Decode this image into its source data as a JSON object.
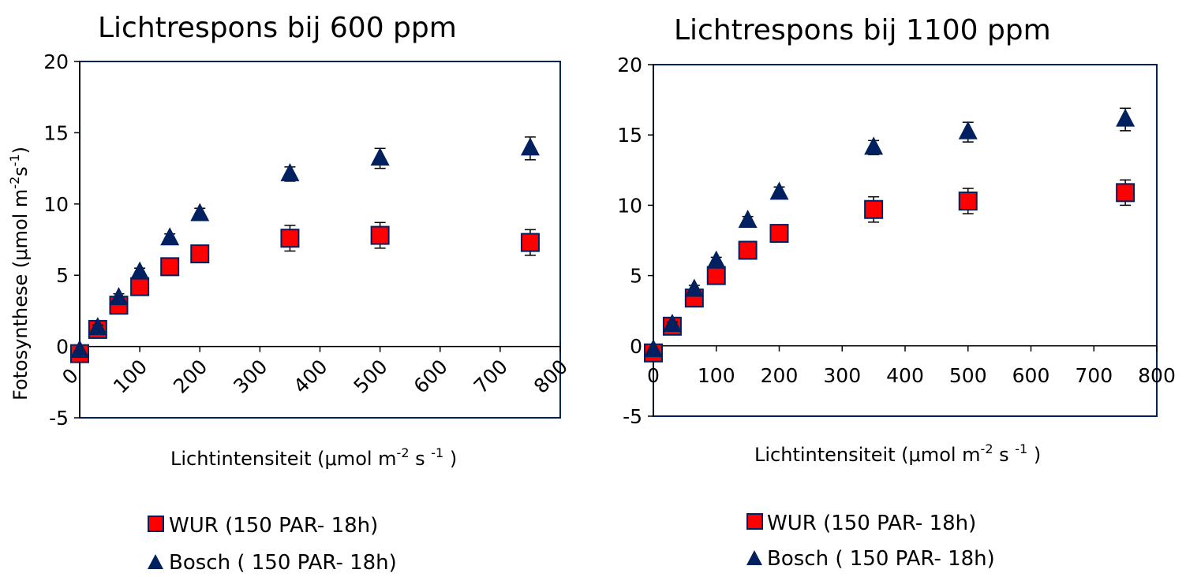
{
  "chart_data": [
    {
      "type": "scatter",
      "title": "Lichtrespons bij 600 ppm",
      "xlabel": {
        "text": "Lichtintensiteit  (μmol m",
        "sup1": "-2",
        "mid": " s ",
        "sup2": "-1",
        "end": " )"
      },
      "ylabel": {
        "text": "Fotosynthese (μmol m",
        "sup1": "-2",
        "mid": "s",
        "sup2": "-1",
        "end": ")"
      },
      "xlim": [
        0,
        800
      ],
      "ylim": [
        -5,
        20
      ],
      "xticks": [
        "0",
        "100",
        "200",
        "300",
        "400",
        "500",
        "600",
        "700",
        "800"
      ],
      "yticks": [
        "-5",
        "0",
        "5",
        "10",
        "15",
        "20"
      ],
      "x_tick_rotation": "diagonal",
      "grid": false,
      "series": [
        {
          "name": "WUR (150 PAR- 18h)",
          "marker": "square",
          "color": "#ff0000",
          "x": [
            0,
            30,
            65,
            100,
            150,
            200,
            350,
            500,
            750
          ],
          "y": [
            -0.5,
            1.2,
            2.9,
            4.2,
            5.6,
            6.5,
            7.6,
            7.8,
            7.3
          ],
          "err": [
            0,
            0.2,
            0.3,
            0.3,
            0.4,
            0.5,
            0.9,
            0.9,
            0.9
          ]
        },
        {
          "name": "Bosch ( 150 PAR- 18h)",
          "marker": "triangle",
          "color": "#002060",
          "x": [
            0,
            30,
            65,
            100,
            150,
            200,
            350,
            500,
            750
          ],
          "y": [
            -0.3,
            1.3,
            3.4,
            5.2,
            7.6,
            9.3,
            12.1,
            13.2,
            13.9
          ],
          "err": [
            0,
            0.2,
            0.3,
            0.3,
            0.3,
            0.4,
            0.5,
            0.7,
            0.8
          ]
        }
      ],
      "legend": {
        "position": "bottom-left"
      }
    },
    {
      "type": "scatter",
      "title": "Lichtrespons bij 1100 ppm",
      "xlabel": {
        "text": "Lichtintensiteit  (μmol m",
        "sup1": "-2",
        "mid": " s ",
        "sup2": "-1",
        "end": " )"
      },
      "ylabel": null,
      "xlim": [
        0,
        800
      ],
      "ylim": [
        -5,
        20
      ],
      "xticks": [
        "0",
        "100",
        "200",
        "300",
        "400",
        "500",
        "600",
        "700",
        "800"
      ],
      "yticks": [
        "-5",
        "0",
        "5",
        "10",
        "15",
        "20"
      ],
      "x_tick_rotation": "horizontal",
      "grid": false,
      "series": [
        {
          "name": "WUR (150 PAR- 18h)",
          "marker": "square",
          "color": "#ff0000",
          "x": [
            0,
            30,
            65,
            100,
            150,
            200,
            350,
            500,
            750
          ],
          "y": [
            -0.5,
            1.4,
            3.4,
            5.0,
            6.8,
            8.0,
            9.7,
            10.3,
            10.9
          ],
          "err": [
            0,
            0.2,
            0.3,
            0.3,
            0.4,
            0.5,
            0.9,
            0.9,
            0.9
          ]
        },
        {
          "name": "Bosch ( 150 PAR- 18h)",
          "marker": "triangle",
          "color": "#002060",
          "x": [
            0,
            30,
            65,
            100,
            150,
            200,
            350,
            500,
            750
          ],
          "y": [
            -0.3,
            1.5,
            4.0,
            6.0,
            8.9,
            10.9,
            14.1,
            15.2,
            16.1
          ],
          "err": [
            0,
            0.2,
            0.3,
            0.3,
            0.3,
            0.4,
            0.5,
            0.7,
            0.8
          ]
        }
      ],
      "legend": {
        "position": "bottom-left"
      }
    }
  ]
}
